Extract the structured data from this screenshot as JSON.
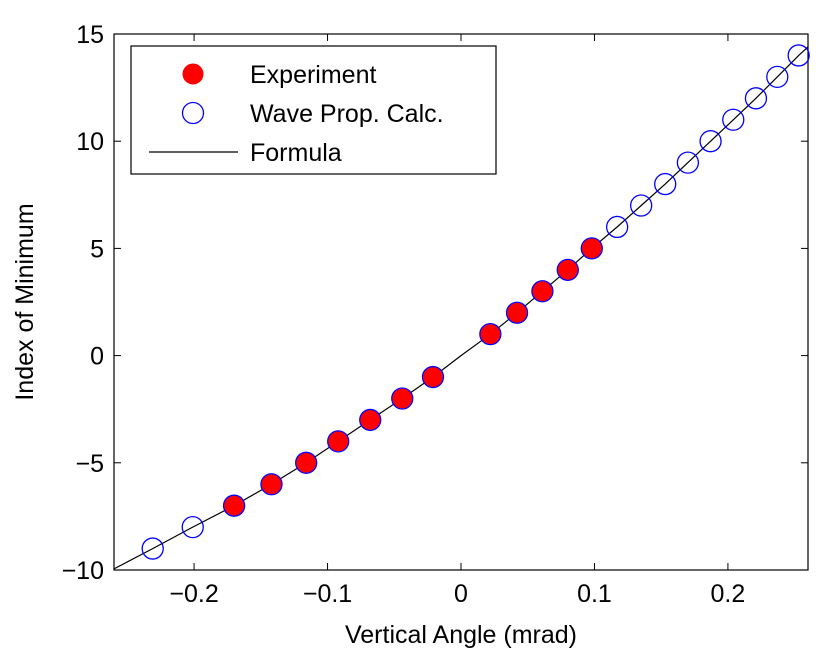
{
  "chart_data": {
    "type": "scatter",
    "title": "",
    "xlabel": "Vertical Angle (mrad)",
    "ylabel": "Index of Minimum",
    "xlim": [
      -0.26,
      0.26
    ],
    "ylim": [
      -10,
      15
    ],
    "xticks": [
      -0.2,
      -0.1,
      0,
      0.1,
      0.2
    ],
    "xtick_labels": [
      "−0.2",
      "−0.1",
      "0",
      "0.1",
      "0.2"
    ],
    "yticks": [
      -10,
      -5,
      0,
      5,
      10,
      15
    ],
    "ytick_labels": [
      "−10",
      "−5",
      "0",
      "5",
      "10",
      "15"
    ],
    "grid": false,
    "legend_position": "top-left",
    "series": [
      {
        "name": "Experiment",
        "style": "filled-circle",
        "color": "#ff0000",
        "points": [
          [
            -0.17,
            -7
          ],
          [
            -0.142,
            -6
          ],
          [
            -0.116,
            -5
          ],
          [
            -0.092,
            -4
          ],
          [
            -0.068,
            -3
          ],
          [
            -0.044,
            -2
          ],
          [
            -0.021,
            -1
          ],
          [
            0.022,
            1
          ],
          [
            0.042,
            2
          ],
          [
            0.061,
            3
          ],
          [
            0.08,
            4
          ],
          [
            0.098,
            5
          ]
        ]
      },
      {
        "name": "Wave Prop. Calc.",
        "style": "open-circle",
        "color": "#0000ff",
        "points": [
          [
            -0.231,
            -9
          ],
          [
            -0.201,
            -8
          ],
          [
            -0.17,
            -7
          ],
          [
            -0.142,
            -6
          ],
          [
            -0.116,
            -5
          ],
          [
            -0.092,
            -4
          ],
          [
            -0.068,
            -3
          ],
          [
            -0.044,
            -2
          ],
          [
            -0.021,
            -1
          ],
          [
            0.022,
            1
          ],
          [
            0.042,
            2
          ],
          [
            0.061,
            3
          ],
          [
            0.08,
            4
          ],
          [
            0.098,
            5
          ],
          [
            0.117,
            6
          ],
          [
            0.135,
            7
          ],
          [
            0.153,
            8
          ],
          [
            0.17,
            9
          ],
          [
            0.187,
            10
          ],
          [
            0.204,
            11
          ],
          [
            0.221,
            12
          ],
          [
            0.237,
            13
          ],
          [
            0.253,
            14
          ]
        ]
      },
      {
        "name": "Formula",
        "style": "line",
        "color": "#000000",
        "points": [
          [
            -0.26,
            -9.95
          ],
          [
            -0.231,
            -9
          ],
          [
            -0.201,
            -8
          ],
          [
            -0.17,
            -7
          ],
          [
            -0.142,
            -6
          ],
          [
            -0.116,
            -5
          ],
          [
            -0.092,
            -4
          ],
          [
            -0.068,
            -3
          ],
          [
            -0.044,
            -2
          ],
          [
            -0.021,
            -1
          ],
          [
            0.0,
            0
          ],
          [
            0.022,
            1
          ],
          [
            0.042,
            2
          ],
          [
            0.061,
            3
          ],
          [
            0.08,
            4
          ],
          [
            0.098,
            5
          ],
          [
            0.117,
            6
          ],
          [
            0.135,
            7
          ],
          [
            0.153,
            8
          ],
          [
            0.17,
            9
          ],
          [
            0.187,
            10
          ],
          [
            0.204,
            11
          ],
          [
            0.221,
            12
          ],
          [
            0.237,
            13
          ],
          [
            0.253,
            14
          ],
          [
            0.26,
            14.4
          ]
        ]
      }
    ]
  }
}
